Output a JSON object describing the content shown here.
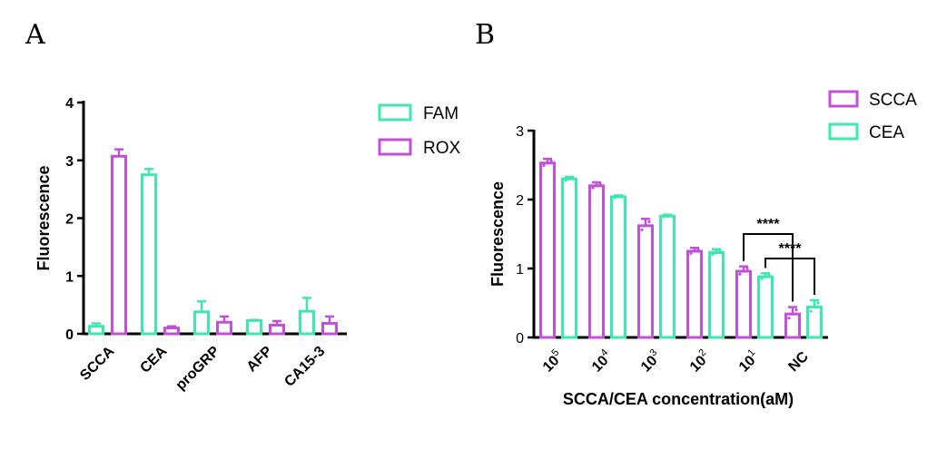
{
  "colors": {
    "fam": "#3ee6b0",
    "rox": "#c050d8",
    "axis": "#000000"
  },
  "chart_data": [
    {
      "panel": "A",
      "type": "bar",
      "title": "",
      "xlabel": "",
      "ylabel": "Fluorescence",
      "ylim": [
        0,
        4
      ],
      "yticks": [
        "0",
        "1",
        "2",
        "3",
        "4"
      ],
      "categories": [
        "SCCA",
        "CEA",
        "proGRP",
        "AFP",
        "CA15-3"
      ],
      "legend_position": "top-right",
      "series": [
        {
          "name": "FAM",
          "color": "#3ee6b0",
          "values": [
            0.13,
            2.75,
            0.38,
            0.23,
            0.39
          ],
          "errors": [
            0.05,
            0.1,
            0.18,
            0.01,
            0.23
          ]
        },
        {
          "name": "ROX",
          "color": "#c050d8",
          "values": [
            3.07,
            0.1,
            0.2,
            0.15,
            0.18
          ],
          "errors": [
            0.12,
            0.03,
            0.1,
            0.07,
            0.12
          ]
        }
      ]
    },
    {
      "panel": "B",
      "type": "bar",
      "title": "",
      "xlabel": "SCCA/CEA concentration(aM)",
      "ylabel": "Fluorescence",
      "ylim": [
        0,
        3
      ],
      "yticks": [
        "0",
        "1",
        "2",
        "3"
      ],
      "categories": [
        {
          "base": "10",
          "exp": "5"
        },
        {
          "base": "10",
          "exp": "4"
        },
        {
          "base": "10",
          "exp": "3"
        },
        {
          "base": "10",
          "exp": "2"
        },
        {
          "base": "10",
          "exp": "1"
        },
        {
          "base": "NC",
          "exp": ""
        }
      ],
      "legend_position": "top-right",
      "series": [
        {
          "name": "SCCA",
          "color": "#c050d8",
          "values": [
            2.53,
            2.2,
            1.62,
            1.25,
            0.96,
            0.34
          ],
          "errors": [
            0.06,
            0.05,
            0.1,
            0.05,
            0.07,
            0.1
          ]
        },
        {
          "name": "CEA",
          "color": "#3ee6b0",
          "values": [
            2.3,
            2.04,
            1.76,
            1.23,
            0.88,
            0.44
          ],
          "errors": [
            0.03,
            0.02,
            0.02,
            0.05,
            0.05,
            0.1
          ]
        }
      ],
      "significance": [
        {
          "label": "****",
          "from_category": 4,
          "from_series": 0,
          "to_category": 5,
          "to_series": 0
        },
        {
          "label": "****",
          "from_category": 4,
          "from_series": 1,
          "to_category": 5,
          "to_series": 1
        }
      ]
    }
  ],
  "panels": {
    "a_label": "A",
    "b_label": "B"
  }
}
